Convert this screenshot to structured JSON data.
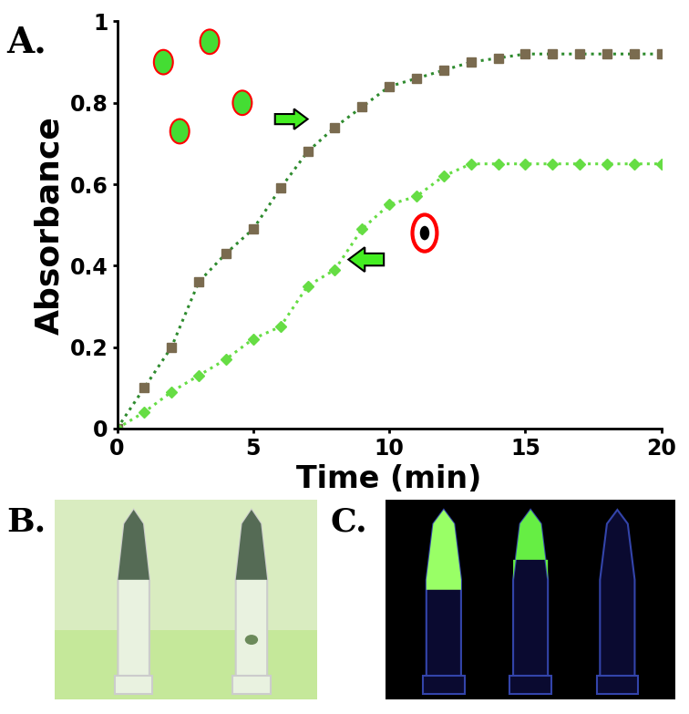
{
  "chart_data": {
    "type": "line",
    "panel_label": "A.",
    "x_label": "Time (min)",
    "y_label": "Absorbance",
    "x": [
      0,
      1,
      2,
      3,
      4,
      5,
      6,
      7,
      8,
      9,
      10,
      11,
      12,
      13,
      14,
      15,
      16,
      17,
      18,
      19,
      20
    ],
    "series": [
      {
        "color": "#7a6b4f",
        "marker": "square",
        "line_style": "dotted",
        "values": [
          0,
          0.1,
          0.2,
          0.36,
          0.43,
          0.49,
          0.59,
          0.68,
          0.74,
          0.79,
          0.84,
          0.86,
          0.88,
          0.9,
          0.91,
          0.92,
          0.92,
          0.92,
          0.92,
          0.92,
          0.92
        ]
      },
      {
        "color": "#66dd44",
        "marker": "diamond",
        "line_style": "dotted",
        "values": [
          0,
          0.04,
          0.09,
          0.13,
          0.17,
          0.22,
          0.25,
          0.35,
          0.39,
          0.49,
          0.55,
          0.57,
          0.62,
          0.65,
          0.65,
          0.65,
          0.65,
          0.65,
          0.65,
          0.65,
          0.65
        ]
      }
    ],
    "xlim": [
      0,
      20
    ],
    "xticks": [
      0,
      5,
      10,
      15,
      20
    ],
    "ylim": [
      0,
      1
    ],
    "yticks": [
      0,
      0.2,
      0.4,
      0.6,
      0.8,
      1
    ],
    "grid": false
  },
  "photos": [
    {
      "label": "B."
    },
    {
      "label": "C."
    }
  ]
}
